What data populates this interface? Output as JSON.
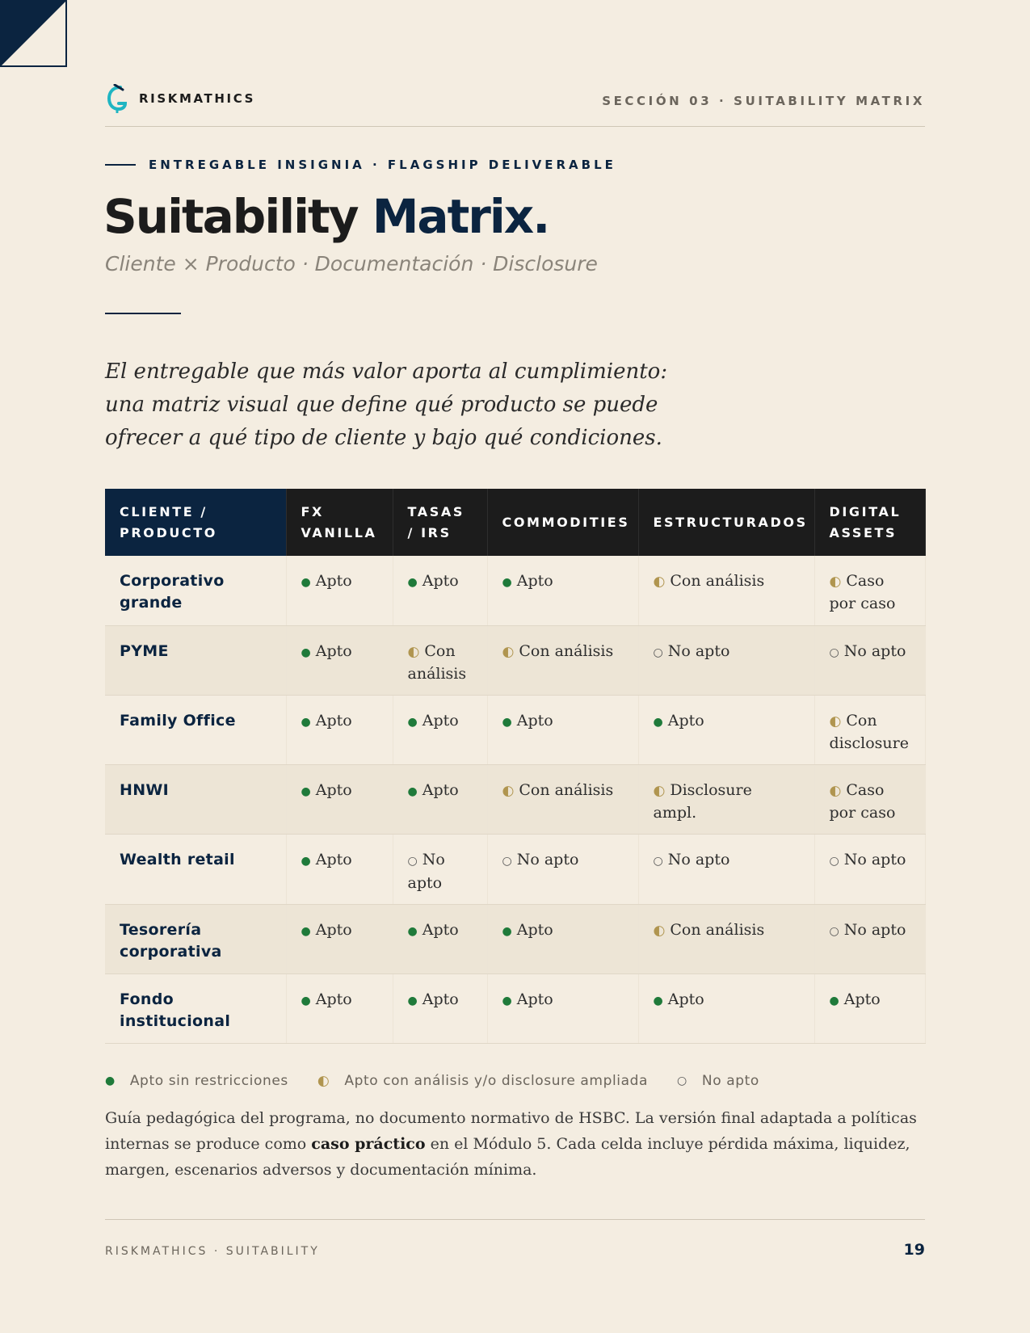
{
  "header": {
    "brand": "RISKMATHICS",
    "section": "SECCIÓN 03 · SUITABILITY MATRIX"
  },
  "eyebrow": "ENTREGABLE INSIGNIA · FLAGSHIP DELIVERABLE",
  "title": {
    "part1": "Suitability",
    "part2": "Matrix."
  },
  "subtitle": "Cliente × Producto · Documentación · Disclosure",
  "intro": "El entregable que más valor aporta al cumplimiento: una matriz visual que define qué producto se puede ofrecer a qué tipo de cliente y bajo qué condiciones.",
  "table": {
    "headers": [
      "CLIENTE / PRODUCTO",
      "FX VANILLA",
      "TASAS / IRS",
      "COMMODITIES",
      "ESTRUCTURADOS",
      "DIGITAL ASSETS"
    ],
    "rows": [
      {
        "client": "Corporativo grande",
        "cells": [
          {
            "level": "full",
            "text": "Apto"
          },
          {
            "level": "full",
            "text": "Apto"
          },
          {
            "level": "full",
            "text": "Apto"
          },
          {
            "level": "half",
            "text": "Con análisis"
          },
          {
            "level": "half",
            "text": "Caso por caso"
          }
        ]
      },
      {
        "client": "PYME",
        "cells": [
          {
            "level": "full",
            "text": "Apto"
          },
          {
            "level": "half",
            "text": "Con análisis"
          },
          {
            "level": "half",
            "text": "Con análisis"
          },
          {
            "level": "none",
            "text": "No apto"
          },
          {
            "level": "none",
            "text": "No apto"
          }
        ]
      },
      {
        "client": "Family Office",
        "cells": [
          {
            "level": "full",
            "text": "Apto"
          },
          {
            "level": "full",
            "text": "Apto"
          },
          {
            "level": "full",
            "text": "Apto"
          },
          {
            "level": "full",
            "text": "Apto"
          },
          {
            "level": "half",
            "text": "Con disclosure"
          }
        ]
      },
      {
        "client": "HNWI",
        "cells": [
          {
            "level": "full",
            "text": "Apto"
          },
          {
            "level": "full",
            "text": "Apto"
          },
          {
            "level": "half",
            "text": "Con análisis"
          },
          {
            "level": "half",
            "text": "Disclosure ampl."
          },
          {
            "level": "half",
            "text": "Caso por caso"
          }
        ]
      },
      {
        "client": "Wealth retail",
        "cells": [
          {
            "level": "full",
            "text": "Apto"
          },
          {
            "level": "none",
            "text": "No apto"
          },
          {
            "level": "none",
            "text": "No apto"
          },
          {
            "level": "none",
            "text": "No apto"
          },
          {
            "level": "none",
            "text": "No apto"
          }
        ]
      },
      {
        "client": "Tesorería corporativa",
        "cells": [
          {
            "level": "full",
            "text": "Apto"
          },
          {
            "level": "full",
            "text": "Apto"
          },
          {
            "level": "full",
            "text": "Apto"
          },
          {
            "level": "half",
            "text": "Con análisis"
          },
          {
            "level": "none",
            "text": "No apto"
          }
        ]
      },
      {
        "client": "Fondo institucional",
        "cells": [
          {
            "level": "full",
            "text": "Apto"
          },
          {
            "level": "full",
            "text": "Apto"
          },
          {
            "level": "full",
            "text": "Apto"
          },
          {
            "level": "full",
            "text": "Apto"
          },
          {
            "level": "full",
            "text": "Apto"
          }
        ]
      }
    ]
  },
  "symbols": {
    "full": "●",
    "half": "◐",
    "none": "○"
  },
  "colors": {
    "navy": "#0b2440",
    "full": "#1f7a3a",
    "half": "#b0954f",
    "background": "#f4ede1"
  },
  "legend": {
    "full": "Apto sin restricciones",
    "half": "Apto con análisis y/o disclosure ampliada",
    "none": "No apto"
  },
  "note": {
    "before": "Guía pedagógica del programa, no documento normativo de HSBC. La versión final adaptada a políticas internas se produce como ",
    "bold": "caso práctico",
    "after": " en el Módulo 5. Cada celda incluye pérdida máxima, liquidez, margen, escenarios adversos y documentación mínima."
  },
  "footer": {
    "left": "RISKMATHICS · SUITABILITY",
    "page": "19"
  }
}
